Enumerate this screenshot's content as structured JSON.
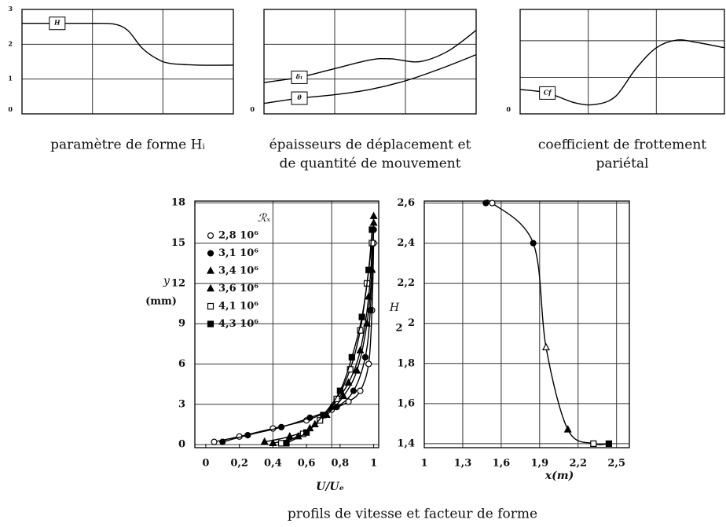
{
  "caption": "profils de vitesse et facteur de forme",
  "chart_data": [
    {
      "type": "line",
      "caption": [
        "paramètre de forme Hᵢ"
      ],
      "xlim": [
        0,
        3
      ],
      "ylim": [
        0,
        3
      ],
      "yticks": [
        0,
        1,
        2,
        3
      ],
      "grid": "y",
      "xgrid": [
        1,
        2
      ],
      "series": [
        {
          "name": "H",
          "color": "#000",
          "x": [
            0,
            0.5,
            1,
            1.3,
            1.5,
            1.7,
            1.9,
            2.1,
            2.5,
            3
          ],
          "values": [
            2.6,
            2.6,
            2.6,
            2.58,
            2.4,
            1.9,
            1.6,
            1.45,
            1.4,
            1.4
          ]
        }
      ]
    },
    {
      "type": "line",
      "caption": [
        "épaisseurs de déplacement et",
        "de quantité de mouvement"
      ],
      "xlim": [
        0,
        3
      ],
      "ylim": [
        0,
        3
      ],
      "yticks": [
        0
      ],
      "xgrid": [
        1,
        2
      ],
      "ygrid": [
        1,
        2
      ],
      "series": [
        {
          "name": "δ₁",
          "color": "#000",
          "x": [
            0,
            0.5,
            1,
            1.5,
            1.8,
            2.2,
            2.6,
            3
          ],
          "values": [
            0.9,
            1.05,
            1.3,
            1.55,
            1.58,
            1.5,
            1.8,
            2.4
          ]
        },
        {
          "name": "θ",
          "color": "#000",
          "x": [
            0,
            0.5,
            1,
            1.5,
            2,
            2.5,
            3
          ],
          "values": [
            0.3,
            0.45,
            0.55,
            0.7,
            0.95,
            1.3,
            1.7
          ]
        }
      ]
    },
    {
      "type": "line",
      "caption": [
        "coefficient de frottement",
        "pariétal"
      ],
      "xlim": [
        0,
        3
      ],
      "ylim": [
        0,
        3
      ],
      "yticks": [
        0
      ],
      "xgrid": [
        1,
        2
      ],
      "ygrid": [
        1.05,
        2.1
      ],
      "series": [
        {
          "name": "Cf",
          "color": "#000",
          "x": [
            0,
            0.4,
            0.8,
            1.1,
            1.4,
            1.7,
            2,
            2.3,
            2.6,
            3
          ],
          "values": [
            0.7,
            0.6,
            0.32,
            0.27,
            0.5,
            1.3,
            1.9,
            2.12,
            2.05,
            1.9
          ]
        }
      ]
    },
    {
      "type": "line",
      "xlabel": "U/Uₑ",
      "ylabel": [
        "y",
        "(mm)"
      ],
      "legend_title": "ℛₓ",
      "xlim": [
        -0.065,
        1.03
      ],
      "ylim": [
        -0.23,
        18.13
      ],
      "grid": "y",
      "xgrid": [
        0.4,
        0.75
      ],
      "xticks": [
        0,
        {
          "value": 0.2,
          "label": "0,2"
        },
        {
          "value": 0.4,
          "label": "0,4"
        },
        {
          "value": 0.6,
          "label": "0,6"
        },
        {
          "value": 0.8,
          "label": "0,8"
        },
        1
      ],
      "yticks": [
        0,
        3,
        6,
        9,
        12,
        15,
        18
      ],
      "series": [
        {
          "name": "2,8 10⁶",
          "marker": "circle-open",
          "color": "#000",
          "x": [
            0.05,
            0.2,
            0.4,
            0.6,
            0.75,
            0.85,
            0.92,
            0.97,
            0.99,
            1
          ],
          "values": [
            0.2,
            0.6,
            1.2,
            1.8,
            2.6,
            3.2,
            4,
            6,
            10,
            15
          ]
        },
        {
          "name": "3,1 10⁶",
          "marker": "circle",
          "color": "#000",
          "x": [
            0.1,
            0.25,
            0.45,
            0.62,
            0.78,
            0.88,
            0.95,
            0.98,
            1
          ],
          "values": [
            0.2,
            0.7,
            1.3,
            2,
            2.8,
            4,
            6.5,
            10,
            16
          ]
        },
        {
          "name": "3,4 10⁶",
          "marker": "triangle",
          "color": "#000",
          "x": [
            0.35,
            0.5,
            0.62,
            0.72,
            0.82,
            0.9,
            0.96,
            0.99,
            1
          ],
          "values": [
            0.2,
            0.6,
            1.2,
            2.2,
            3.6,
            5.5,
            9,
            13,
            17
          ]
        },
        {
          "name": "3,6 10⁶",
          "marker": "triangle",
          "color": "#000",
          "x": [
            0.4,
            0.55,
            0.65,
            0.75,
            0.85,
            0.92,
            0.97,
            1
          ],
          "values": [
            0.1,
            0.6,
            1.5,
            2.8,
            4.6,
            7,
            11,
            16.5
          ]
        },
        {
          "name": "4,1 10⁶",
          "marker": "square-open",
          "color": "#000",
          "x": [
            0.45,
            0.58,
            0.68,
            0.78,
            0.86,
            0.92,
            0.96,
            0.99
          ],
          "values": [
            0.1,
            0.8,
            1.8,
            3.4,
            5.6,
            8.5,
            12,
            15
          ]
        },
        {
          "name": "4,3 10⁶",
          "marker": "square",
          "color": "#000",
          "x": [
            0.48,
            0.6,
            0.7,
            0.8,
            0.87,
            0.93,
            0.97,
            0.99
          ],
          "values": [
            0.1,
            0.9,
            2.2,
            4,
            6.5,
            9.5,
            13,
            16
          ]
        }
      ]
    },
    {
      "type": "line",
      "xlabel": "x(m)",
      "ylabel": [
        "H",
        "2"
      ],
      "xlim": [
        1,
        2.6
      ],
      "ylim": [
        1.38,
        2.61
      ],
      "grid": "both",
      "xticks": [
        1,
        {
          "value": 1.3,
          "label": "1,3"
        },
        {
          "value": 1.6,
          "label": "1,6"
        },
        {
          "value": 1.9,
          "label": "1,9"
        },
        {
          "value": 2.2,
          "label": "2,2"
        },
        {
          "value": 2.5,
          "label": "2,5"
        }
      ],
      "yticks": [
        {
          "value": 1.4,
          "label": "1,4"
        },
        {
          "value": 1.6,
          "label": "1,6"
        },
        {
          "value": 1.8,
          "label": "1,8"
        },
        2,
        {
          "value": 2.2,
          "label": "2,2"
        },
        {
          "value": 2.4,
          "label": "2,4"
        },
        {
          "value": 2.6,
          "label": "2,6"
        }
      ],
      "series": [
        {
          "color": "#000",
          "x": [
            1.48,
            1.53,
            1.85,
            1.95,
            2.12,
            2.32,
            2.44
          ],
          "values": [
            2.6,
            2.6,
            2.4,
            1.88,
            1.47,
            1.4,
            1.4
          ],
          "markers": [
            "circle",
            "circle-open",
            "circle",
            "triangle-open",
            "triangle",
            "square-open",
            "square"
          ]
        }
      ]
    }
  ]
}
